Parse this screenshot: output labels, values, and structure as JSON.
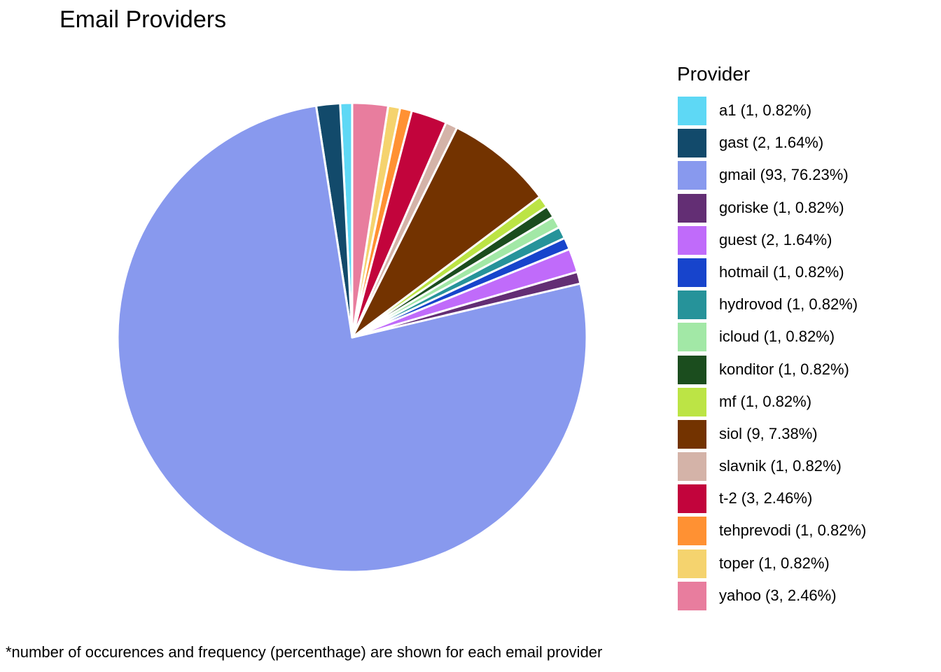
{
  "chart_data": {
    "type": "pie",
    "title": "Email Providers",
    "legend_title": "Provider",
    "legend_position": "right",
    "caption": "*number of occurences and frequency (percenthage) are shown for each email provider",
    "slices": [
      {
        "name": "a1",
        "label": "a1 (1, 0.82%)",
        "value": 1,
        "percent": 0.82,
        "color": "#5ED8F5"
      },
      {
        "name": "gast",
        "label": "gast (2, 1.64%)",
        "value": 2,
        "percent": 1.64,
        "color": "#124A6B"
      },
      {
        "name": "gmail",
        "label": "gmail (93, 76.23%)",
        "value": 93,
        "percent": 76.23,
        "color": "#8899EE"
      },
      {
        "name": "goriske",
        "label": "goriske (1, 0.82%)",
        "value": 1,
        "percent": 0.82,
        "color": "#632E74"
      },
      {
        "name": "guest",
        "label": "guest (2, 1.64%)",
        "value": 2,
        "percent": 1.64,
        "color": "#C06BFA"
      },
      {
        "name": "hotmail",
        "label": "hotmail (1, 0.82%)",
        "value": 1,
        "percent": 0.82,
        "color": "#1744CC"
      },
      {
        "name": "hydrovod",
        "label": "hydrovod (1, 0.82%)",
        "value": 1,
        "percent": 0.82,
        "color": "#26939A"
      },
      {
        "name": "icloud",
        "label": "icloud (1, 0.82%)",
        "value": 1,
        "percent": 0.82,
        "color": "#A2E8A6"
      },
      {
        "name": "konditor",
        "label": "konditor (1, 0.82%)",
        "value": 1,
        "percent": 0.82,
        "color": "#1B4D1E"
      },
      {
        "name": "mf",
        "label": "mf (1, 0.82%)",
        "value": 1,
        "percent": 0.82,
        "color": "#BCE445"
      },
      {
        "name": "siol",
        "label": "siol (9, 7.38%)",
        "value": 9,
        "percent": 7.38,
        "color": "#733300"
      },
      {
        "name": "slavnik",
        "label": "slavnik (1, 0.82%)",
        "value": 1,
        "percent": 0.82,
        "color": "#D4B3A8"
      },
      {
        "name": "t-2",
        "label": "t-2 (3, 2.46%)",
        "value": 3,
        "percent": 2.46,
        "color": "#C2043C"
      },
      {
        "name": "tehprevodi",
        "label": "tehprevodi (1, 0.82%)",
        "value": 1,
        "percent": 0.82,
        "color": "#FF9133"
      },
      {
        "name": "toper",
        "label": "toper (1, 0.82%)",
        "value": 1,
        "percent": 0.82,
        "color": "#F5D36E"
      },
      {
        "name": "yahoo",
        "label": "yahoo (3, 2.46%)",
        "value": 3,
        "percent": 2.46,
        "color": "#E87D9E"
      }
    ]
  }
}
